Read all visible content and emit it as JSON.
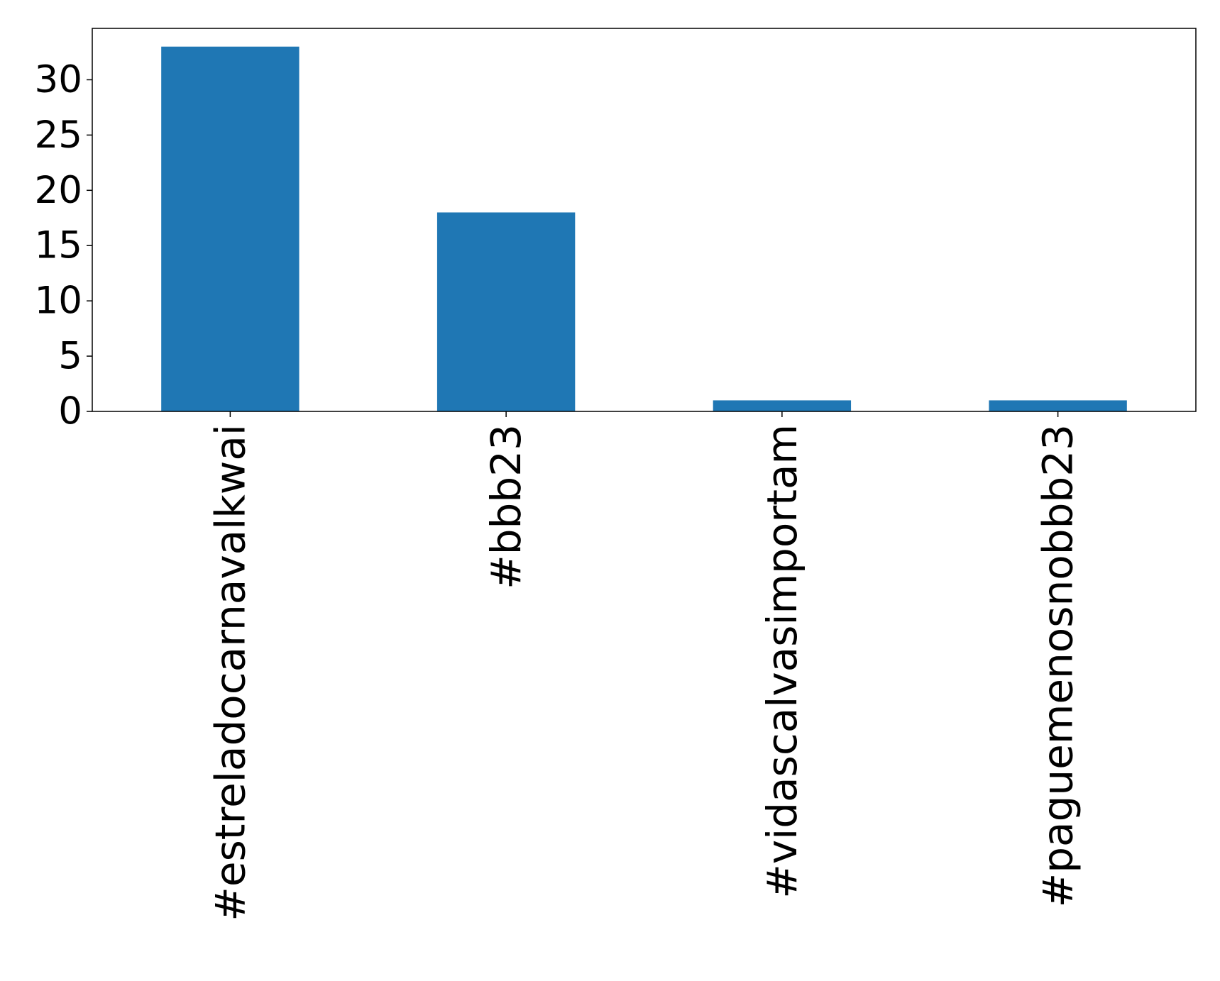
{
  "chart_data": {
    "type": "bar",
    "title": "",
    "xlabel": "",
    "ylabel": "",
    "categories": [
      "#estreladocarnavalkwai",
      "#bbb23",
      "#vidascalvasimportam",
      "#paguemenosnobbb23"
    ],
    "values": [
      33,
      18,
      1,
      1
    ],
    "ylim": [
      0,
      34.65
    ],
    "yticks": [
      0,
      5,
      10,
      15,
      20,
      25,
      30
    ],
    "bar_color": "#1f77b4",
    "grid": false,
    "legend": "none"
  }
}
